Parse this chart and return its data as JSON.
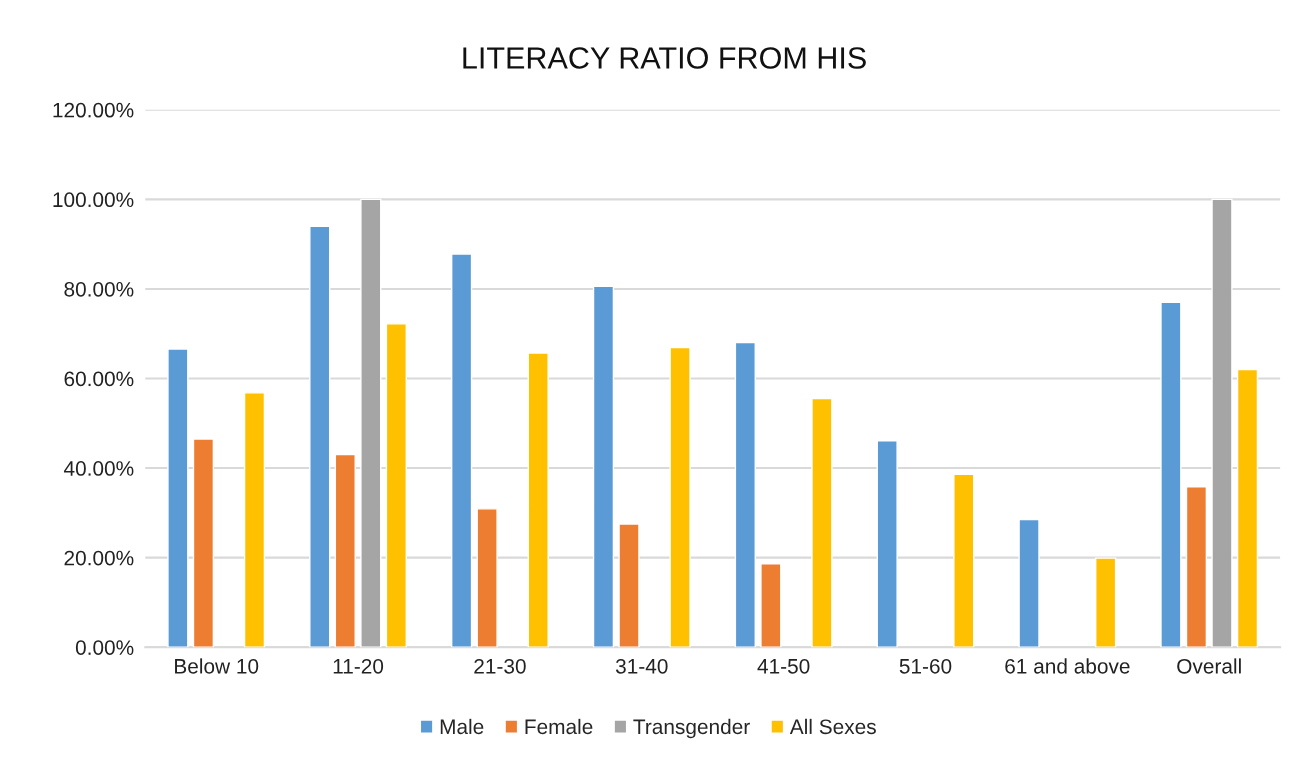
{
  "chart_data": {
    "type": "bar",
    "title": "LITERACY RATIO FROM HIS",
    "categories": [
      "Below 10",
      "11-20",
      "21-30",
      "31-40",
      "41-50",
      "51-60",
      "61 and above",
      "Overall"
    ],
    "series": [
      {
        "name": "Male",
        "color": "#5b9bd5",
        "values": [
          66.6,
          94.0,
          87.8,
          80.6,
          68.0,
          46.1,
          28.5,
          77.0
        ]
      },
      {
        "name": "Female",
        "color": "#ed7d31",
        "values": [
          46.5,
          43.0,
          30.9,
          27.5,
          18.6,
          null,
          null,
          35.8
        ]
      },
      {
        "name": "Transgender",
        "color": "#a5a5a5",
        "values": [
          null,
          100,
          null,
          null,
          null,
          null,
          null,
          100
        ]
      },
      {
        "name": "All Sexes",
        "color": "#ffc000",
        "values": [
          56.8,
          72.2,
          65.7,
          66.9,
          55.5,
          38.6,
          19.9,
          62.0
        ]
      }
    ],
    "ylim": [
      0,
      120
    ],
    "yticks": [
      {
        "value": 0,
        "label": "0.00%"
      },
      {
        "value": 20,
        "label": "20.00%"
      },
      {
        "value": 40,
        "label": "40.00%"
      },
      {
        "value": 60,
        "label": "60.00%"
      },
      {
        "value": 80,
        "label": "80.00%"
      },
      {
        "value": 100,
        "label": "100.00%"
      },
      {
        "value": 120,
        "label": "120.00%"
      }
    ],
    "grid": "y",
    "legend": "bottom"
  }
}
